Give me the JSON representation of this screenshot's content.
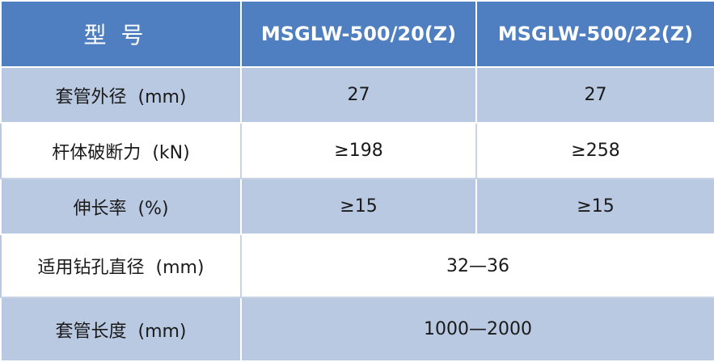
{
  "table": {
    "header": {
      "label": "型号",
      "model_a": "MSGLW-500/20(Z)",
      "model_b": "MSGLW-500/22(Z)"
    },
    "rows": [
      {
        "label": "套管外径",
        "unit": "(mm)",
        "value_a": "27",
        "value_b": "27"
      },
      {
        "label": "杆体破断力",
        "unit": "(kN)",
        "value_a": "≥198",
        "value_b": "≥258"
      },
      {
        "label": "伸长率",
        "unit": "(%)",
        "value_a": "≥15",
        "value_b": "≥15"
      },
      {
        "label": "适用钻孔直径",
        "unit": "(mm)",
        "value": "32—36"
      },
      {
        "label": "套管长度",
        "unit": "(mm)",
        "value": "1000—2000"
      }
    ]
  }
}
